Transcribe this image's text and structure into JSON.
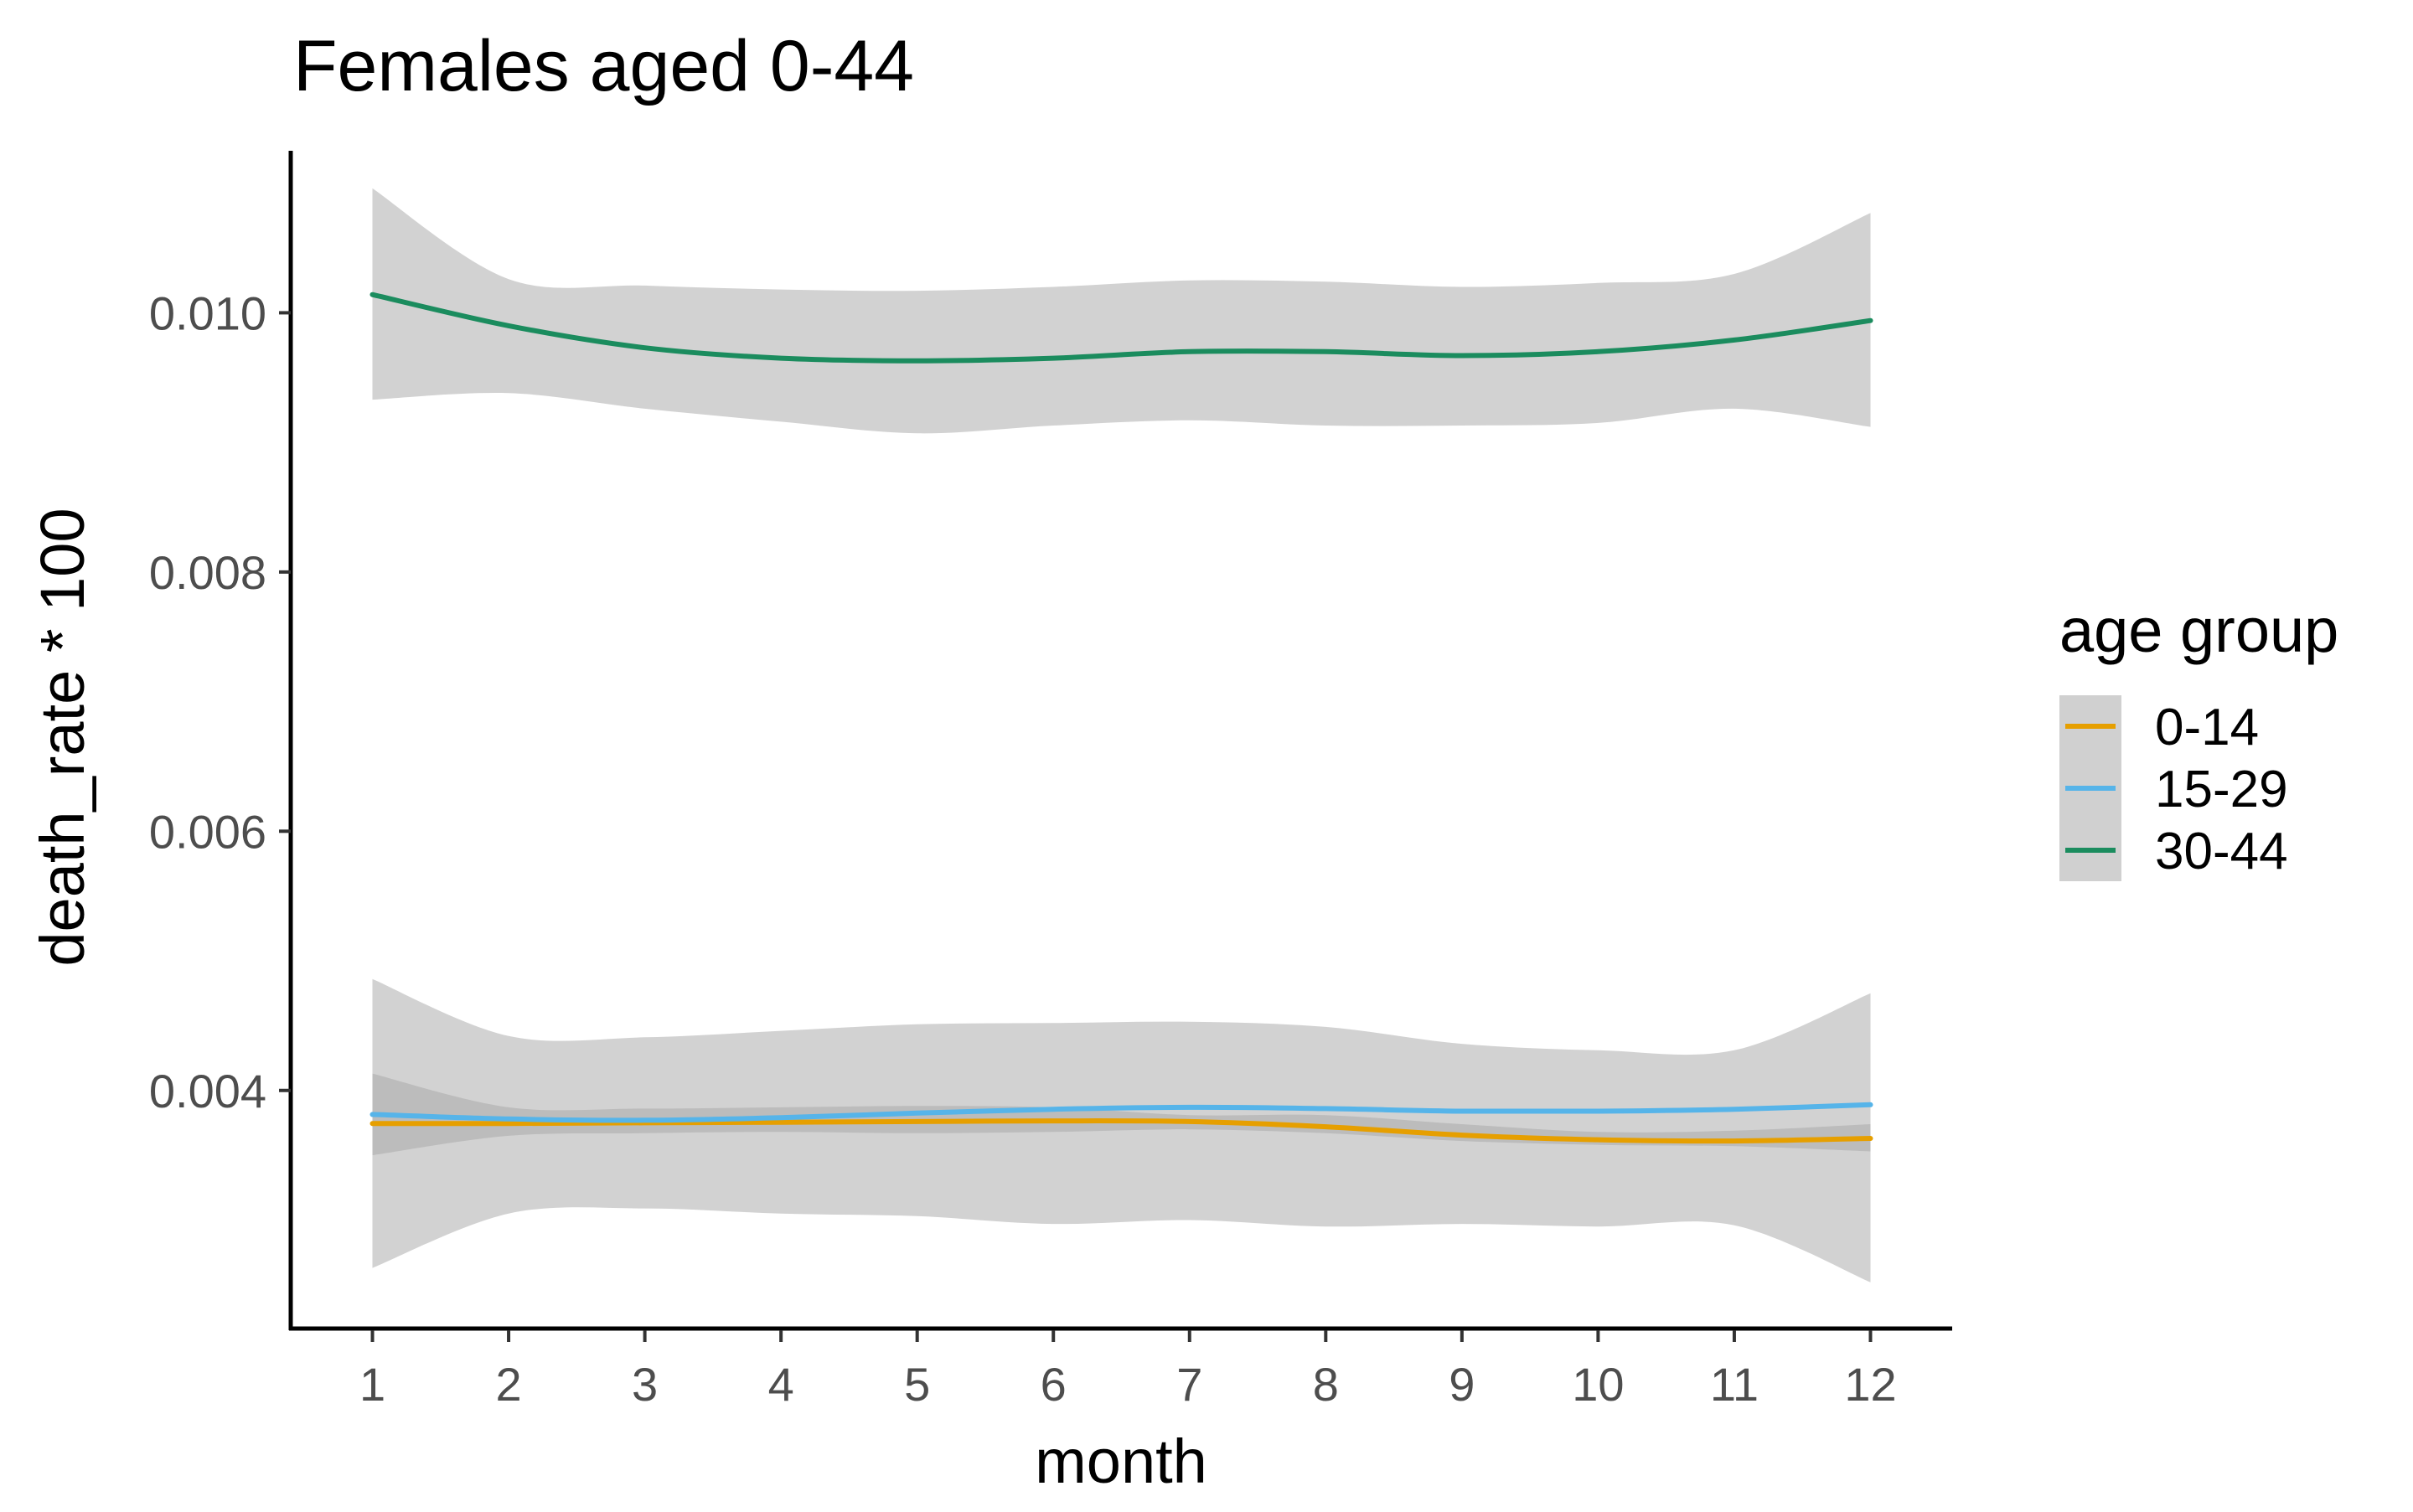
{
  "chart_data": {
    "type": "line",
    "title": "Females aged 0-44",
    "xlabel": "month",
    "ylabel": "death_rate * 100",
    "x": [
      1,
      2,
      3,
      4,
      5,
      6,
      7,
      8,
      9,
      10,
      11,
      12
    ],
    "xlim": [
      0.4,
      12.6
    ],
    "ylim": [
      0.00215,
      0.01125
    ],
    "x_ticks": [
      "1",
      "2",
      "3",
      "4",
      "5",
      "6",
      "7",
      "8",
      "9",
      "10",
      "11",
      "12"
    ],
    "y_ticks": [
      "0.004",
      "0.006",
      "0.008",
      "0.010"
    ],
    "y_tick_values": [
      0.004,
      0.006,
      0.008,
      0.01
    ],
    "grid": false,
    "legend": {
      "title": "age group",
      "position": "right"
    },
    "series": [
      {
        "name": "0-14",
        "color": "#E69F00",
        "values": [
          0.003745,
          0.003745,
          0.00375,
          0.003755,
          0.00376,
          0.003765,
          0.00376,
          0.00372,
          0.003655,
          0.00362,
          0.00361,
          0.00363
        ],
        "ci_lower": [
          0.0035,
          0.00365,
          0.00367,
          0.00368,
          0.00367,
          0.00368,
          0.0037,
          0.00367,
          0.00361,
          0.00358,
          0.00357,
          0.00353
        ],
        "ci_upper": [
          0.00413,
          0.00387,
          0.00386,
          0.00387,
          0.00388,
          0.00387,
          0.00381,
          0.00381,
          0.00374,
          0.00368,
          0.00369,
          0.00374
        ]
      },
      {
        "name": "15-29",
        "color": "#56B4E9",
        "values": [
          0.003815,
          0.00378,
          0.00377,
          0.00379,
          0.003825,
          0.003855,
          0.00387,
          0.00386,
          0.00384,
          0.00384,
          0.003855,
          0.00389
        ],
        "ci_lower": [
          0.00263,
          0.00305,
          0.00309,
          0.00305,
          0.00303,
          0.00297,
          0.003,
          0.00295,
          0.00297,
          0.00295,
          0.00296,
          0.00252
        ],
        "ci_upper": [
          0.00486,
          0.00442,
          0.00441,
          0.00446,
          0.00451,
          0.00452,
          0.00453,
          0.00449,
          0.00436,
          0.00431,
          0.00431,
          0.00475
        ]
      },
      {
        "name": "30-44",
        "color": "#1B8C5E",
        "values": [
          0.01014,
          0.0099,
          0.00973,
          0.00965,
          0.00963,
          0.00965,
          0.0097,
          0.0097,
          0.00967,
          0.0097,
          0.00979,
          0.00994
        ],
        "ci_lower": [
          0.00933,
          0.00938,
          0.00926,
          0.00916,
          0.00907,
          0.00913,
          0.00917,
          0.00913,
          0.00913,
          0.00915,
          0.00926,
          0.00912
        ],
        "ci_upper": [
          0.01096,
          0.01026,
          0.01021,
          0.01018,
          0.01017,
          0.0102,
          0.01025,
          0.01024,
          0.0102,
          0.01023,
          0.0103,
          0.01077
        ]
      }
    ]
  }
}
